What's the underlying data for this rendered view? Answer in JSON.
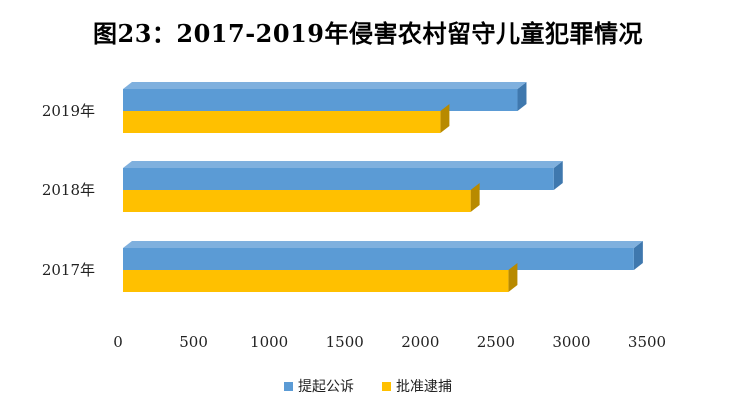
{
  "chart_data": {
    "type": "bar",
    "orientation": "horizontal",
    "title": "图23：2017-2019年侵害农村留守儿童犯罪情况",
    "categories": [
      "2019年",
      "2018年",
      "2017年"
    ],
    "series": [
      {
        "name": "提起公诉",
        "color": "#5B9BD5",
        "values": [
          2610,
          2850,
          3380
        ]
      },
      {
        "name": "批准逮捕",
        "color": "#FFC000",
        "values": [
          2100,
          2300,
          2550
        ]
      }
    ],
    "xlim": [
      0,
      3500
    ],
    "xticks": [
      "0",
      "500",
      "1000",
      "1500",
      "2000",
      "2500",
      "3000",
      "3500"
    ],
    "grid": false,
    "legend": "bottom"
  }
}
